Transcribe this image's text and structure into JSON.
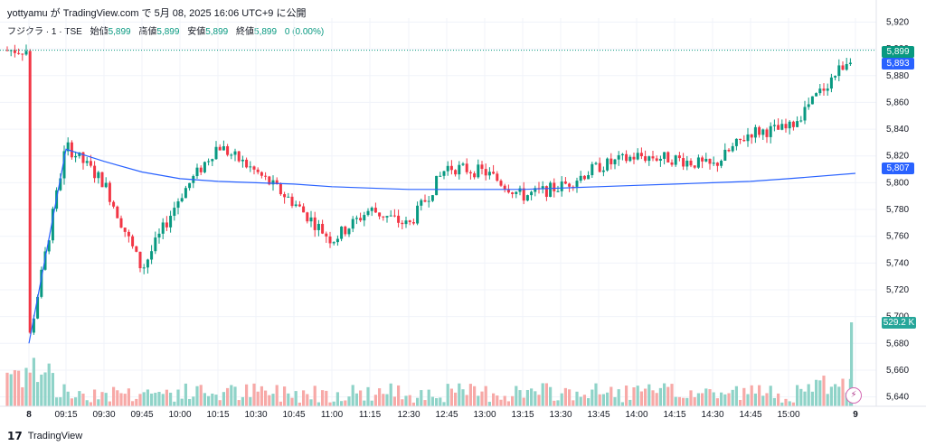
{
  "header": {
    "text": "yottyamu が TradingView.com で 5月 08, 2025 16:06 UTC+9 に公開"
  },
  "legend": {
    "symbol": "フジクラ · 1 · TSE",
    "open_label": "始値",
    "open": "5,899",
    "high_label": "高値",
    "high": "5,899",
    "low_label": "安値",
    "low": "5,899",
    "close_label": "終値",
    "close": "5,899",
    "change": "0 (0.00%)"
  },
  "badges": {
    "last_price": "5,899",
    "second_price": "5,893",
    "ma_price": "5,807",
    "volume": "529.2 K"
  },
  "footer": {
    "logo_text": "TradingView"
  },
  "colors": {
    "up": "#089981",
    "down": "#f23645",
    "ma": "#2962ff",
    "last": "#089981",
    "volume_up": "#8fd3c8",
    "volume_down": "#f7a9a7"
  },
  "chart_data": {
    "type": "candlestick",
    "y_ticks": [
      "5,920",
      "5,900",
      "5,880",
      "5,860",
      "5,840",
      "5,820",
      "5,800",
      "5,780",
      "5,760",
      "5,740",
      "5,720",
      "5,700",
      "5,680",
      "5,660",
      "5,640"
    ],
    "y_range": [
      5633,
      5923
    ],
    "x_ticks": [
      "8",
      "09:15",
      "09:30",
      "09:45",
      "10:00",
      "10:15",
      "10:30",
      "10:45",
      "11:00",
      "11:15",
      "12:30",
      "12:45",
      "13:00",
      "13:15",
      "13:30",
      "13:45",
      "14:00",
      "14:15",
      "14:30",
      "14:45",
      "15:00",
      "9"
    ],
    "last_price_line": 5899,
    "ma_series": {
      "x": [
        "8",
        "09:15",
        "09:30",
        "09:45",
        "10:00",
        "10:15",
        "10:30",
        "10:45",
        "11:00",
        "11:15",
        "12:30",
        "12:45",
        "13:00",
        "13:15",
        "13:30",
        "13:45",
        "14:00",
        "14:15",
        "14:30",
        "14:45",
        "15:00",
        "9"
      ],
      "values": [
        5680,
        5825,
        5816,
        5808,
        5803,
        5801,
        5800,
        5799,
        5797,
        5796,
        5795,
        5795,
        5795,
        5795,
        5796,
        5797,
        5798,
        5799,
        5800,
        5801,
        5803,
        5807
      ]
    },
    "price_path": [
      [
        "8",
        5682
      ],
      [
        "09:15",
        5828
      ],
      [
        "09:30",
        5800
      ],
      [
        "09:45",
        5735
      ],
      [
        "10:00",
        5790
      ],
      [
        "10:15",
        5828
      ],
      [
        "10:30",
        5808
      ],
      [
        "10:45",
        5785
      ],
      [
        "11:00",
        5757
      ],
      [
        "11:15",
        5780
      ],
      [
        "12:30",
        5768
      ],
      [
        "12:45",
        5812
      ],
      [
        "13:00",
        5808
      ],
      [
        "13:15",
        5790
      ],
      [
        "13:30",
        5797
      ],
      [
        "13:45",
        5812
      ],
      [
        "14:00",
        5820
      ],
      [
        "14:15",
        5818
      ],
      [
        "14:30",
        5812
      ],
      [
        "14:45",
        5838
      ],
      [
        "15:00",
        5840
      ],
      [
        "9",
        5899
      ]
    ],
    "volume_max_label": "529.2 K"
  }
}
